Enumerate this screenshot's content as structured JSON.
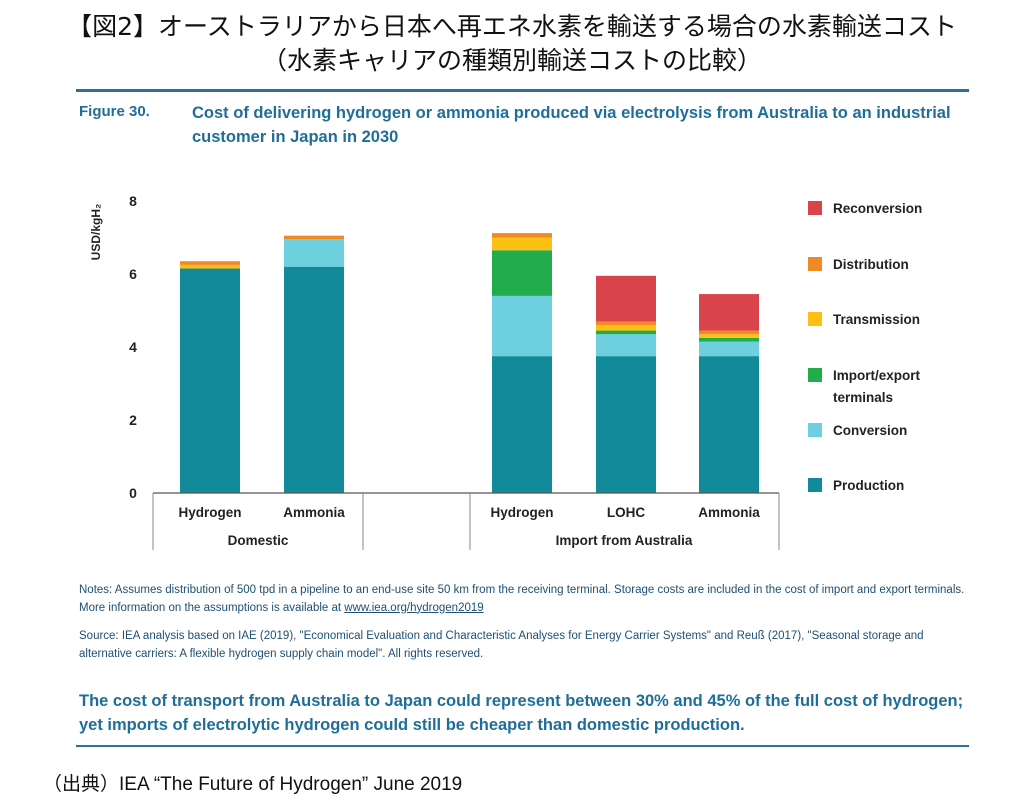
{
  "header": {
    "title_line1": "【図2】オーストラリアから日本へ再エネ水素を輸送する場合の水素輸送コスト",
    "title_line2": "（水素キャリアの種類別輸送コストの比較）"
  },
  "figure": {
    "label": "Figure 30.",
    "title": "Cost of delivering hydrogen or ammonia produced via electrolysis from Australia to an industrial customer in Japan in 2030"
  },
  "chart_data": {
    "type": "bar",
    "stacked": true,
    "ylabel": "USD/kgH₂",
    "ylim": [
      0,
      8
    ],
    "yticks": [
      0,
      2,
      4,
      6,
      8
    ],
    "grid": false,
    "legend_position": "right",
    "groups": [
      {
        "label": "Domestic",
        "categories": [
          "Hydrogen",
          "Ammonia"
        ]
      },
      {
        "label": "Import from Australia",
        "categories": [
          "Hydrogen",
          "LOHC",
          "Ammonia"
        ]
      }
    ],
    "categories": [
      "Hydrogen",
      "Ammonia",
      "Hydrogen",
      "LOHC",
      "Ammonia"
    ],
    "series": [
      {
        "name": "Production",
        "color": "#128a9a",
        "values": [
          6.15,
          6.2,
          3.75,
          3.75,
          3.75
        ]
      },
      {
        "name": "Conversion",
        "color": "#6ecfdf",
        "values": [
          0,
          0.75,
          1.65,
          0.6,
          0.4
        ]
      },
      {
        "name": "Import/export terminals",
        "color": "#21ad4b",
        "values": [
          0,
          0,
          1.25,
          0.1,
          0.1
        ]
      },
      {
        "name": "Transmission",
        "color": "#fdbf12",
        "values": [
          0.1,
          0,
          0.35,
          0.15,
          0.1
        ]
      },
      {
        "name": "Distribution",
        "color": "#f08a24",
        "values": [
          0.1,
          0.1,
          0.12,
          0.1,
          0.1
        ]
      },
      {
        "name": "Reconversion",
        "color": "#d9434c",
        "values": [
          0,
          0,
          0,
          1.25,
          1.0
        ]
      }
    ]
  },
  "notes": {
    "text": "Notes: Assumes distribution of 500 tpd in a pipeline to an end-use site 50 km from the receiving terminal. Storage costs are included in the cost of import and export terminals. More information on the assumptions is available at ",
    "url": "www.iea.org/hydrogen2019",
    "source": "Source: IEA analysis based on IAE (2019), \"Economical Evaluation and Characteristic Analyses for Energy Carrier Systems\" and Reuß (2017), \"Seasonal storage and alternative carriers: A flexible hydrogen supply chain model\". All rights reserved."
  },
  "takeaway": "The cost of transport from Australia to Japan could represent between 30% and 45% of the full cost of hydrogen; yet imports of electrolytic hydrogen could still be cheaper than domestic production.",
  "credit": "（出典）IEA “The Future of Hydrogen” June 2019"
}
